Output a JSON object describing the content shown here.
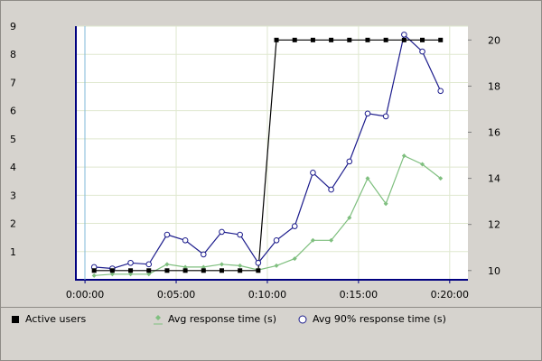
{
  "chart_data": {
    "type": "line",
    "x": [
      "0:00:30",
      "0:01:30",
      "0:02:30",
      "0:03:30",
      "0:04:30",
      "0:05:30",
      "0:06:30",
      "0:07:30",
      "0:08:30",
      "0:09:30",
      "0:10:30",
      "0:11:30",
      "0:12:30",
      "0:13:30",
      "0:14:30",
      "0:15:30",
      "0:16:30",
      "0:17:30",
      "0:18:30",
      "0:19:30"
    ],
    "x_seconds": [
      30,
      90,
      150,
      210,
      270,
      330,
      390,
      450,
      510,
      570,
      630,
      690,
      750,
      810,
      870,
      930,
      990,
      1050,
      1110,
      1170
    ],
    "xlim_seconds": [
      -30,
      1260
    ],
    "x_ticks": [
      "0:00:00",
      "0:05:00",
      "0:10:00",
      "0:15:00",
      "0:20:00"
    ],
    "x_tick_seconds": [
      0,
      300,
      600,
      900,
      1200
    ],
    "left_axis": {
      "ticks": [
        "1",
        "2",
        "3",
        "4",
        "5",
        "6",
        "7",
        "8",
        "9"
      ],
      "ylim": [
        0,
        9
      ]
    },
    "right_axis": {
      "ticks": [
        "10",
        "12",
        "14",
        "16",
        "18",
        "20"
      ],
      "ylim": [
        9.6,
        20.6
      ]
    },
    "series": [
      {
        "name": "Active users",
        "axis": "right",
        "color": "#000000",
        "marker": "square",
        "values": [
          10,
          10,
          10,
          10,
          10,
          10,
          10,
          10,
          10,
          10,
          20,
          20,
          20,
          20,
          20,
          20,
          20,
          20,
          20,
          20
        ]
      },
      {
        "name": "Avg response time (s)",
        "axis": "left",
        "color": "#7fbf7f",
        "marker": "diamond",
        "values": [
          0.15,
          0.2,
          0.2,
          0.2,
          0.55,
          0.45,
          0.45,
          0.55,
          0.5,
          0.35,
          0.5,
          0.75,
          1.4,
          1.4,
          2.2,
          3.6,
          2.7,
          4.4,
          4.1,
          3.6
        ]
      },
      {
        "name": "Avg 90% response time (s)",
        "axis": "left",
        "color": "#1c1c8c",
        "marker": "circle",
        "values": [
          0.45,
          0.4,
          0.6,
          0.55,
          1.6,
          1.4,
          0.9,
          1.7,
          1.6,
          0.6,
          1.4,
          1.9,
          3.8,
          3.2,
          4.2,
          5.9,
          5.8,
          8.7,
          8.1,
          6.7
        ]
      }
    ],
    "grid": true,
    "legend_position": "bottom"
  }
}
